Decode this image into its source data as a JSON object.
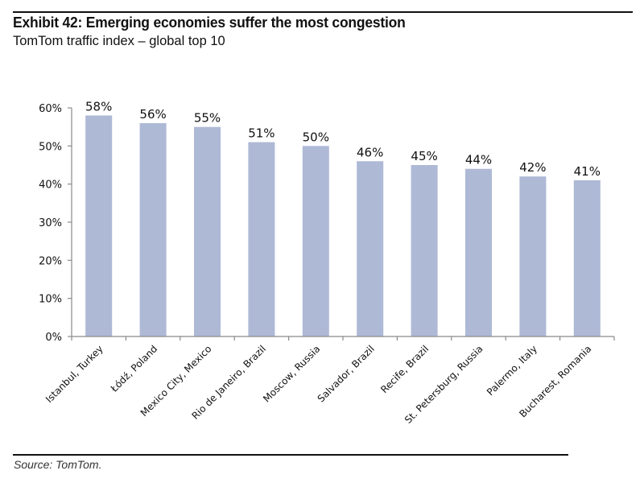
{
  "header": {
    "title": "Exhibit 42: Emerging economies suffer the most congestion",
    "subtitle": "TomTom traffic index – global top 10"
  },
  "footer": {
    "source": "Source: TomTom."
  },
  "chart_data": {
    "type": "bar",
    "title": "Exhibit 42: Emerging economies suffer the most congestion",
    "subtitle": "TomTom traffic index – global top 10",
    "xlabel": "",
    "ylabel": "",
    "categories": [
      "Istanbul, Turkey",
      "Łódź, Poland",
      "Mexico City, Mexico",
      "Rio de Janeiro, Brazil",
      "Moscow, Russia",
      "Salvador, Brazil",
      "Recife, Brazil",
      "St. Petersburg, Russia",
      "Palermo, Italy",
      "Bucharest, Romania"
    ],
    "values": [
      58,
      56,
      55,
      51,
      50,
      46,
      45,
      44,
      42,
      41
    ],
    "data_labels": [
      "58%",
      "56%",
      "55%",
      "51%",
      "50%",
      "46%",
      "45%",
      "44%",
      "42%",
      "41%"
    ],
    "ylim": [
      0,
      60
    ],
    "yticks": [
      0,
      10,
      20,
      30,
      40,
      50,
      60
    ],
    "ytick_labels": [
      "0%",
      "10%",
      "20%",
      "30%",
      "40%",
      "50%",
      "60%"
    ],
    "grid": false,
    "legend": "none",
    "bar_color": "#AEB9D6",
    "source": "Source: TomTom."
  }
}
